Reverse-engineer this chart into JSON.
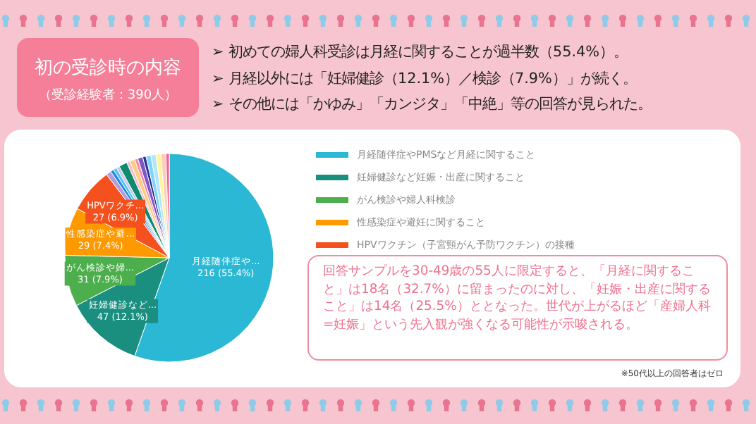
{
  "chart_data": {
    "type": "pie",
    "title": "初の受診時の内容",
    "subtitle": "（受診経験者：390人）",
    "categories": [
      "月経随伴症やPMSなど月経に関すること",
      "妊婦健診など妊娠・出産に関すること",
      "がん検診や婦人科検診",
      "性感染症や避妊に関すること",
      "HPVワクチン（子宮頸がん予防ワクチン）の接種",
      null,
      null,
      null,
      null,
      null,
      null,
      null,
      null,
      null,
      null,
      null,
      null,
      null,
      null,
      null
    ],
    "values": [
      216,
      47,
      31,
      29,
      27,
      3,
      2,
      2,
      2,
      5,
      2,
      3,
      2,
      3,
      2,
      3,
      3,
      3,
      3,
      2
    ],
    "colors": [
      "#2bb8d4",
      "#1a8f80",
      "#4cae4c",
      "#ff9900",
      "#f4511e",
      "#b39ddb",
      "#1e88e5",
      "#4fc3f7",
      "#c5cae9",
      "#0f8a6e",
      "#f8bbd0",
      "#ffcc80",
      "#f48fb1",
      "#7e57c2",
      "#283593",
      "#81d4fa",
      "#b3e5fc",
      "#fff59d",
      "#ffccbc",
      "#f06292"
    ],
    "value_labels": [
      "月経随伴症や...\n216 (55.4%)",
      "妊婦健診など...\n47 (12.1%)",
      "がん検診や婦...\n31 (7.9%)",
      "性感染症や避...\n29 (7.4%)",
      "HPVワクチ...\n27 (6.9%)",
      null,
      null,
      null,
      null,
      null,
      null,
      null,
      null,
      null,
      null,
      null,
      null,
      null,
      null,
      null
    ],
    "legend": "top right",
    "annotations": [
      "➢ 初めての婦人科受診は月経に関することが過半数（55.4%）。",
      "➢ 月経以外には「妊婦健診（12.1%）／検診（7.9%）」が続く。",
      "➢ その他には「かゆみ」「カンジタ」「中絶」等の回答が見られた。",
      "回答サンプルを30-49歳の55人に限定すると、「月経に関すること」は18名（32.7%）に留まったのに対し、「妊娠・出産に関すること」は14名（25.5%）ととなった。世代が上がるほど「産婦人科=妊娠」という先入観が強くなる可能性が示唆される。",
      "※50代以上の回答者はゼロ"
    ]
  }
}
